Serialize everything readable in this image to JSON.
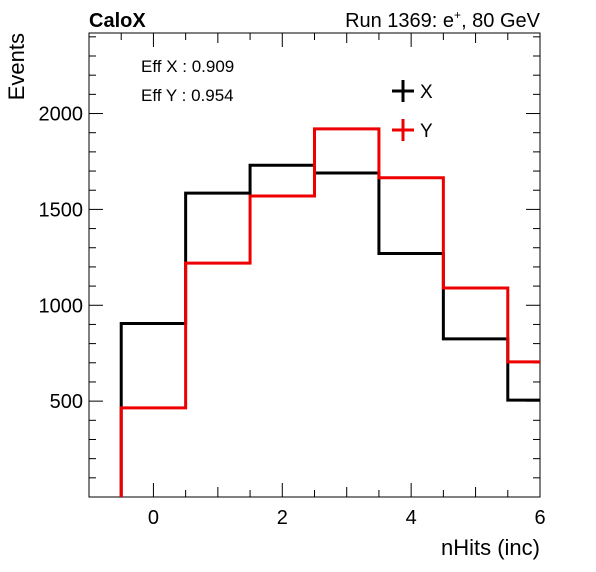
{
  "header": {
    "title_left": "CaloX",
    "run_prefix": "Run 1369: e",
    "run_sup": "+",
    "run_suffix": ", 80 GeV"
  },
  "annotations": {
    "eff_x": "Eff X : 0.909",
    "eff_y": "Eff Y : 0.954"
  },
  "legend": {
    "x_label": "X",
    "y_label": "Y"
  },
  "chart_data": {
    "type": "line",
    "style": "step-histogram",
    "xlabel": "nHits (inc)",
    "ylabel": "Events",
    "xlim": [
      -1,
      6
    ],
    "ylim": [
      0,
      2420
    ],
    "x_ticks": [
      0,
      2,
      4,
      6
    ],
    "y_ticks": [
      500,
      1000,
      1500,
      2000
    ],
    "bin_edges": [
      -0.5,
      0.5,
      1.5,
      2.5,
      3.5,
      4.5,
      5.5,
      6
    ],
    "series": [
      {
        "name": "X",
        "color": "#000000",
        "values": [
          905,
          1585,
          1730,
          1690,
          1270,
          825,
          505
        ]
      },
      {
        "name": "Y",
        "color": "#ee0000",
        "values": [
          465,
          1220,
          1570,
          1920,
          1665,
          1090,
          705
        ]
      }
    ],
    "legend_position": "top-right",
    "grid": false
  }
}
